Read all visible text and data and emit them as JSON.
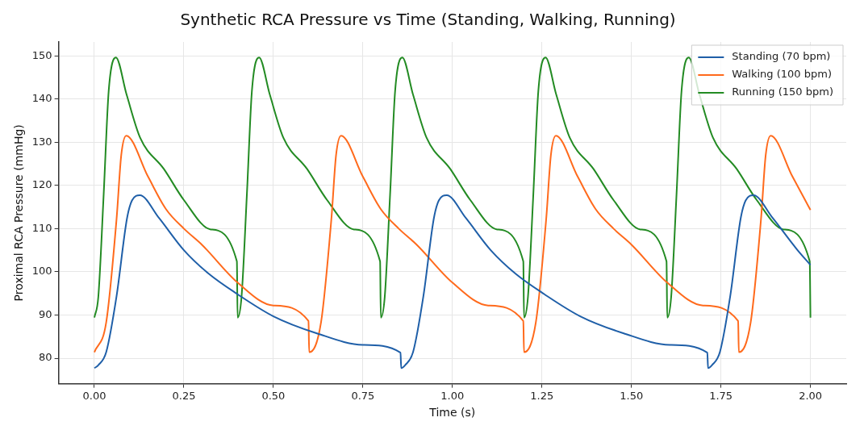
{
  "chart_data": {
    "type": "line",
    "title": "Synthetic RCA Pressure vs Time (Standing, Walking, Running)",
    "xlabel": "Time (s)",
    "ylabel": "Proximal RCA Pressure (mmHg)",
    "xlim": [
      -0.1,
      2.1
    ],
    "ylim": [
      74.1,
      153.2
    ],
    "xticks": [
      {
        "value": 0,
        "label": "0.00"
      },
      {
        "value": 0.25,
        "label": "0.25"
      },
      {
        "value": 0.5,
        "label": "0.50"
      },
      {
        "value": 0.75,
        "label": "0.75"
      },
      {
        "value": 1,
        "label": "1.00"
      },
      {
        "value": 1.25,
        "label": "1.25"
      },
      {
        "value": 1.5,
        "label": "1.50"
      },
      {
        "value": 1.75,
        "label": "1.75"
      },
      {
        "value": 2,
        "label": "2.00"
      }
    ],
    "yticks": [
      80,
      90,
      100,
      110,
      120,
      130,
      140,
      150
    ],
    "grid": true,
    "legend": "top right",
    "marker": "none",
    "line_style": "solid",
    "series": [
      {
        "name": "Standing (70 bpm)",
        "color": "#1f5fa8",
        "x": [
          0,
          0.011,
          0.033,
          0.062,
          0.091,
          0.105,
          0.127,
          0.18,
          0.25,
          0.32,
          0.4,
          0.5,
          0.62,
          0.75,
          0.855,
          0.857,
          0.868,
          0.89,
          0.919,
          0.948,
          0.962,
          0.984,
          1.037,
          1.107,
          1.177,
          1.257,
          1.357,
          1.477,
          1.607,
          1.712,
          1.714,
          1.725,
          1.747,
          1.776,
          1.805,
          1.819,
          1.841,
          1.894,
          1.964,
          2.0
        ],
        "values": [
          77.7,
          78.4,
          81.4,
          94.4,
          112.3,
          116.5,
          117.7,
          112.5,
          105,
          99.5,
          94.8,
          89.7,
          85.8,
          83.1,
          81.3,
          77.7,
          78.4,
          81.4,
          94.4,
          112.3,
          116.5,
          117.7,
          112.5,
          105,
          99.5,
          94.8,
          89.7,
          85.8,
          83.1,
          81.3,
          77.7,
          78.4,
          81.4,
          94.4,
          112.3,
          116.5,
          117.7,
          112.5,
          105,
          101.6
        ]
      },
      {
        "name": "Walking (100 bpm)",
        "color": "#ff6a1c",
        "x": [
          0,
          0.033,
          0.062,
          0.075,
          0.089,
          0.15,
          0.2,
          0.25,
          0.3,
          0.4,
          0.5,
          0.598,
          0.6,
          0.633,
          0.662,
          0.675,
          0.689,
          0.75,
          0.8,
          0.85,
          0.9,
          1.0,
          1.1,
          1.198,
          1.2,
          1.233,
          1.262,
          1.275,
          1.289,
          1.35,
          1.4,
          1.45,
          1.5,
          1.6,
          1.7,
          1.798,
          1.8,
          1.833,
          1.862,
          1.875,
          1.889,
          1.95,
          2.0
        ],
        "values": [
          81.4,
          88.3,
          112.3,
          127,
          131.5,
          122,
          114.5,
          110,
          106.3,
          97.5,
          92.2,
          88.6,
          81.4,
          88.3,
          112.3,
          127,
          131.5,
          122,
          114.5,
          110,
          106.3,
          97.5,
          92.2,
          88.6,
          81.4,
          88.3,
          112.3,
          127,
          131.5,
          122,
          114.5,
          110,
          106.3,
          97.5,
          92.2,
          88.6,
          81.4,
          88.3,
          112.3,
          127,
          131.5,
          122,
          114.3
        ]
      },
      {
        "name": "Running (150 bpm)",
        "color": "#238b23",
        "x": [
          0,
          0.011,
          0.026,
          0.04,
          0.06,
          0.09,
          0.128,
          0.194,
          0.25,
          0.325,
          0.398,
          0.4,
          0.411,
          0.426,
          0.44,
          0.46,
          0.49,
          0.528,
          0.594,
          0.65,
          0.725,
          0.798,
          0.8,
          0.811,
          0.826,
          0.84,
          0.86,
          0.89,
          0.928,
          0.994,
          1.05,
          1.125,
          1.198,
          1.2,
          1.211,
          1.226,
          1.24,
          1.26,
          1.29,
          1.328,
          1.394,
          1.45,
          1.525,
          1.598,
          1.6,
          1.611,
          1.626,
          1.64,
          1.66,
          1.69,
          1.728,
          1.794,
          1.85,
          1.925,
          1.998,
          2.0
        ],
        "values": [
          89.4,
          94.2,
          118,
          141.9,
          149.6,
          141,
          131,
          123.8,
          116.6,
          109.8,
          102.4,
          89.4,
          94.2,
          118,
          141.9,
          149.6,
          141,
          131,
          123.8,
          116.6,
          109.8,
          102.4,
          89.4,
          94.2,
          118,
          141.9,
          149.6,
          141,
          131,
          123.8,
          116.6,
          109.8,
          102.4,
          89.4,
          94.2,
          118,
          141.9,
          149.6,
          141,
          131,
          123.8,
          116.6,
          109.8,
          102.4,
          89.4,
          94.2,
          118,
          141.9,
          149.6,
          141,
          131,
          123.8,
          116.6,
          109.8,
          102.4,
          89.4
        ]
      }
    ]
  }
}
